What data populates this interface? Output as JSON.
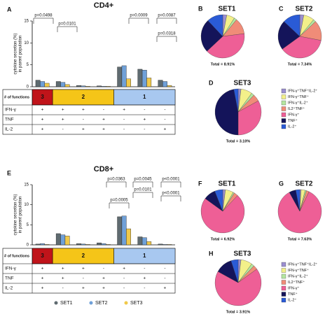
{
  "chart_data": [
    {
      "type": "bar",
      "panel": "A",
      "title": "CD4+",
      "ylabel": [
        "cytokine secretion (%)",
        "in parent population"
      ],
      "categories": [
        null,
        null,
        null,
        null,
        null,
        null,
        null
      ],
      "series": [
        {
          "color": "#5f6b70",
          "values": [
            1.5,
            1.2,
            0.3,
            0.2,
            4.5,
            4.0,
            1.5
          ]
        },
        {
          "color": "#6fa0d8",
          "values": [
            1.2,
            1.0,
            0.2,
            0.1,
            4.8,
            3.8,
            1.2
          ]
        },
        {
          "color": "#f0c94a",
          "values": [
            0.8,
            0.5,
            0.1,
            0.1,
            1.8,
            2.0,
            0.3
          ]
        }
      ],
      "ylim": [
        0,
        15
      ],
      "yticks": [
        0,
        5,
        10,
        15
      ],
      "annotations": [
        "p=0.0498",
        "p=0.0101",
        "p=0.0009",
        "p=0.0087",
        "p=0.0318"
      ],
      "table": {
        "header": "# of functions",
        "groups": [
          "3",
          "2",
          "1"
        ],
        "group_colors": [
          "#c0141a",
          "#f5c518",
          "#a8c8f0"
        ],
        "rows": [
          {
            "label": "IFN-γ",
            "cells": [
              "+",
              "+",
              "+",
              "-",
              "+",
              "-",
              "-"
            ]
          },
          {
            "label": "TNF",
            "cells": [
              "+",
              "+",
              "-",
              "+",
              "-",
              "+",
              "-"
            ]
          },
          {
            "label": "IL-2",
            "cells": [
              "+",
              "-",
              "+",
              "+",
              "-",
              "-",
              "+"
            ]
          }
        ]
      }
    },
    {
      "type": "bar",
      "panel": "E",
      "title": "CD8+",
      "ylabel": [
        "cytokine secretion (%)",
        "in parent population"
      ],
      "categories": [
        null,
        null,
        null,
        null,
        null,
        null,
        null
      ],
      "series": [
        {
          "name": "SET1",
          "color": "#5f6b70",
          "values": [
            0.2,
            2.8,
            0.3,
            0.5,
            7.0,
            2.0,
            0.2
          ]
        },
        {
          "name": "SET2",
          "color": "#6fa0d8",
          "values": [
            0.3,
            2.5,
            0.2,
            0.3,
            7.2,
            1.8,
            0.1
          ]
        },
        {
          "name": "SET3",
          "color": "#f0c94a",
          "values": [
            0.1,
            2.2,
            0.1,
            0.1,
            4.0,
            0.8,
            0.1
          ]
        }
      ],
      "ylim": [
        0,
        15
      ],
      "yticks": [
        0,
        5,
        10,
        15
      ],
      "annotations": [
        "p=0.0363",
        "p=0.0045",
        "p=0.0005",
        "p=0.0101",
        "p<0.0001",
        "p<0.0001"
      ],
      "table": {
        "header": "# of functions",
        "groups": [
          "3",
          "2",
          "1"
        ],
        "group_colors": [
          "#c0141a",
          "#f5c518",
          "#a8c8f0"
        ],
        "rows": [
          {
            "label": "IFN-γ",
            "cells": [
              "+",
              "+",
              "+",
              "-",
              "+",
              "-",
              "-"
            ]
          },
          {
            "label": "TNF",
            "cells": [
              "+",
              "+",
              "-",
              "+",
              "-",
              "+",
              "-"
            ]
          },
          {
            "label": "IL-2",
            "cells": [
              "+",
              "-",
              "+",
              "+",
              "-",
              "-",
              "+"
            ]
          }
        ]
      }
    },
    {
      "type": "pie",
      "panel": "B",
      "title": "SET1",
      "total": "Total = 8.91%",
      "values": [
        3,
        6,
        2,
        12,
        40,
        25,
        12
      ],
      "colors": [
        "#9b8fd0",
        "#f3f08a",
        "#b5e6a0",
        "#f08c78",
        "#ee5f96",
        "#14145a",
        "#2a5bd6"
      ]
    },
    {
      "type": "pie",
      "panel": "C",
      "title": "SET2",
      "total": "Total = 7.34%",
      "values": [
        3,
        8,
        2,
        15,
        37,
        22,
        13
      ],
      "colors": [
        "#9b8fd0",
        "#f3f08a",
        "#b5e6a0",
        "#f08c78",
        "#ee5f96",
        "#14145a",
        "#2a5bd6"
      ]
    },
    {
      "type": "pie",
      "panel": "D",
      "title": "SET3",
      "total": "Total = 3.10%",
      "categories": [
        "IFN-γ⁺TNF⁺IL-2⁺",
        "IFN-γ⁺TNF⁺",
        "IFN-γ⁺IL-2⁺",
        "IL2⁺TNF⁺",
        "IFN-γ⁺",
        "TNF⁺",
        "IL-2⁺"
      ],
      "values": [
        2,
        8,
        2,
        5,
        33,
        47,
        3
      ],
      "colors": [
        "#9b8fd0",
        "#f3f08a",
        "#b5e6a0",
        "#f08c78",
        "#ee5f96",
        "#14145a",
        "#2a5bd6"
      ]
    },
    {
      "type": "pie",
      "panel": "F",
      "title": "SET1",
      "total": "Total = 6.92%",
      "values": [
        2,
        6,
        1,
        3,
        73,
        9,
        6
      ],
      "colors": [
        "#9b8fd0",
        "#f3f08a",
        "#b5e6a0",
        "#f08c78",
        "#ee5f96",
        "#14145a",
        "#2a5bd6"
      ]
    },
    {
      "type": "pie",
      "panel": "G",
      "title": "SET2",
      "total": "Total = 7.63%",
      "values": [
        1,
        3,
        1,
        2,
        85,
        5,
        3
      ],
      "colors": [
        "#9b8fd0",
        "#f3f08a",
        "#b5e6a0",
        "#f08c78",
        "#ee5f96",
        "#14145a",
        "#2a5bd6"
      ]
    },
    {
      "type": "pie",
      "panel": "H",
      "title": "SET3",
      "total": "Total = 3.91%",
      "categories": [
        "IFN-γ⁺TNF⁺IL-2⁺",
        "IFN-γ⁺TNF⁺",
        "IFN-γ⁺IL-2⁺",
        "IL2⁺TNF⁺",
        "IFN-γ⁺",
        "TNF⁺",
        "IL-2⁺"
      ],
      "values": [
        2,
        8,
        2,
        3,
        68,
        12,
        5
      ],
      "colors": [
        "#9b8fd0",
        "#f3f08a",
        "#b5e6a0",
        "#f08c78",
        "#ee5f96",
        "#14145a",
        "#2a5bd6"
      ]
    }
  ]
}
